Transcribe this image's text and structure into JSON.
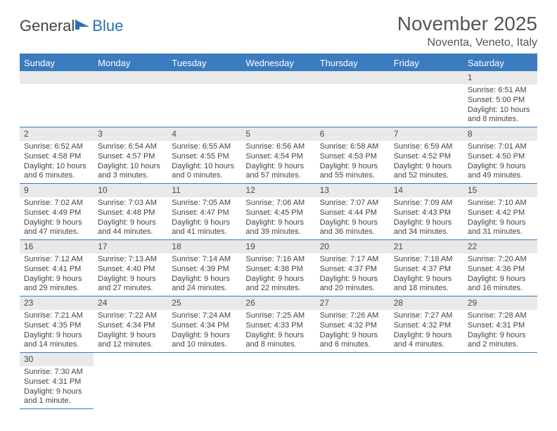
{
  "brand": {
    "word1": "General",
    "word2": "Blue"
  },
  "title": "November 2025",
  "location": "Noventa, Veneto, Italy",
  "colors": {
    "header_bg": "#3b7bbf",
    "header_fg": "#ffffff",
    "daynum_bg": "#e9e9e9",
    "cell_border": "#3b7bbf",
    "text": "#444444",
    "title": "#555555"
  },
  "day_names": [
    "Sunday",
    "Monday",
    "Tuesday",
    "Wednesday",
    "Thursday",
    "Friday",
    "Saturday"
  ],
  "weeks": [
    [
      null,
      null,
      null,
      null,
      null,
      null,
      {
        "n": "1",
        "sr": "Sunrise: 6:51 AM",
        "ss": "Sunset: 5:00 PM",
        "dl": "Daylight: 10 hours and 8 minutes."
      }
    ],
    [
      {
        "n": "2",
        "sr": "Sunrise: 6:52 AM",
        "ss": "Sunset: 4:58 PM",
        "dl": "Daylight: 10 hours and 6 minutes."
      },
      {
        "n": "3",
        "sr": "Sunrise: 6:54 AM",
        "ss": "Sunset: 4:57 PM",
        "dl": "Daylight: 10 hours and 3 minutes."
      },
      {
        "n": "4",
        "sr": "Sunrise: 6:55 AM",
        "ss": "Sunset: 4:55 PM",
        "dl": "Daylight: 10 hours and 0 minutes."
      },
      {
        "n": "5",
        "sr": "Sunrise: 6:56 AM",
        "ss": "Sunset: 4:54 PM",
        "dl": "Daylight: 9 hours and 57 minutes."
      },
      {
        "n": "6",
        "sr": "Sunrise: 6:58 AM",
        "ss": "Sunset: 4:53 PM",
        "dl": "Daylight: 9 hours and 55 minutes."
      },
      {
        "n": "7",
        "sr": "Sunrise: 6:59 AM",
        "ss": "Sunset: 4:52 PM",
        "dl": "Daylight: 9 hours and 52 minutes."
      },
      {
        "n": "8",
        "sr": "Sunrise: 7:01 AM",
        "ss": "Sunset: 4:50 PM",
        "dl": "Daylight: 9 hours and 49 minutes."
      }
    ],
    [
      {
        "n": "9",
        "sr": "Sunrise: 7:02 AM",
        "ss": "Sunset: 4:49 PM",
        "dl": "Daylight: 9 hours and 47 minutes."
      },
      {
        "n": "10",
        "sr": "Sunrise: 7:03 AM",
        "ss": "Sunset: 4:48 PM",
        "dl": "Daylight: 9 hours and 44 minutes."
      },
      {
        "n": "11",
        "sr": "Sunrise: 7:05 AM",
        "ss": "Sunset: 4:47 PM",
        "dl": "Daylight: 9 hours and 41 minutes."
      },
      {
        "n": "12",
        "sr": "Sunrise: 7:06 AM",
        "ss": "Sunset: 4:45 PM",
        "dl": "Daylight: 9 hours and 39 minutes."
      },
      {
        "n": "13",
        "sr": "Sunrise: 7:07 AM",
        "ss": "Sunset: 4:44 PM",
        "dl": "Daylight: 9 hours and 36 minutes."
      },
      {
        "n": "14",
        "sr": "Sunrise: 7:09 AM",
        "ss": "Sunset: 4:43 PM",
        "dl": "Daylight: 9 hours and 34 minutes."
      },
      {
        "n": "15",
        "sr": "Sunrise: 7:10 AM",
        "ss": "Sunset: 4:42 PM",
        "dl": "Daylight: 9 hours and 31 minutes."
      }
    ],
    [
      {
        "n": "16",
        "sr": "Sunrise: 7:12 AM",
        "ss": "Sunset: 4:41 PM",
        "dl": "Daylight: 9 hours and 29 minutes."
      },
      {
        "n": "17",
        "sr": "Sunrise: 7:13 AM",
        "ss": "Sunset: 4:40 PM",
        "dl": "Daylight: 9 hours and 27 minutes."
      },
      {
        "n": "18",
        "sr": "Sunrise: 7:14 AM",
        "ss": "Sunset: 4:39 PM",
        "dl": "Daylight: 9 hours and 24 minutes."
      },
      {
        "n": "19",
        "sr": "Sunrise: 7:16 AM",
        "ss": "Sunset: 4:38 PM",
        "dl": "Daylight: 9 hours and 22 minutes."
      },
      {
        "n": "20",
        "sr": "Sunrise: 7:17 AM",
        "ss": "Sunset: 4:37 PM",
        "dl": "Daylight: 9 hours and 20 minutes."
      },
      {
        "n": "21",
        "sr": "Sunrise: 7:18 AM",
        "ss": "Sunset: 4:37 PM",
        "dl": "Daylight: 9 hours and 18 minutes."
      },
      {
        "n": "22",
        "sr": "Sunrise: 7:20 AM",
        "ss": "Sunset: 4:36 PM",
        "dl": "Daylight: 9 hours and 16 minutes."
      }
    ],
    [
      {
        "n": "23",
        "sr": "Sunrise: 7:21 AM",
        "ss": "Sunset: 4:35 PM",
        "dl": "Daylight: 9 hours and 14 minutes."
      },
      {
        "n": "24",
        "sr": "Sunrise: 7:22 AM",
        "ss": "Sunset: 4:34 PM",
        "dl": "Daylight: 9 hours and 12 minutes."
      },
      {
        "n": "25",
        "sr": "Sunrise: 7:24 AM",
        "ss": "Sunset: 4:34 PM",
        "dl": "Daylight: 9 hours and 10 minutes."
      },
      {
        "n": "26",
        "sr": "Sunrise: 7:25 AM",
        "ss": "Sunset: 4:33 PM",
        "dl": "Daylight: 9 hours and 8 minutes."
      },
      {
        "n": "27",
        "sr": "Sunrise: 7:26 AM",
        "ss": "Sunset: 4:32 PM",
        "dl": "Daylight: 9 hours and 6 minutes."
      },
      {
        "n": "28",
        "sr": "Sunrise: 7:27 AM",
        "ss": "Sunset: 4:32 PM",
        "dl": "Daylight: 9 hours and 4 minutes."
      },
      {
        "n": "29",
        "sr": "Sunrise: 7:28 AM",
        "ss": "Sunset: 4:31 PM",
        "dl": "Daylight: 9 hours and 2 minutes."
      }
    ],
    [
      {
        "n": "30",
        "sr": "Sunrise: 7:30 AM",
        "ss": "Sunset: 4:31 PM",
        "dl": "Daylight: 9 hours and 1 minute."
      },
      null,
      null,
      null,
      null,
      null,
      null
    ]
  ]
}
